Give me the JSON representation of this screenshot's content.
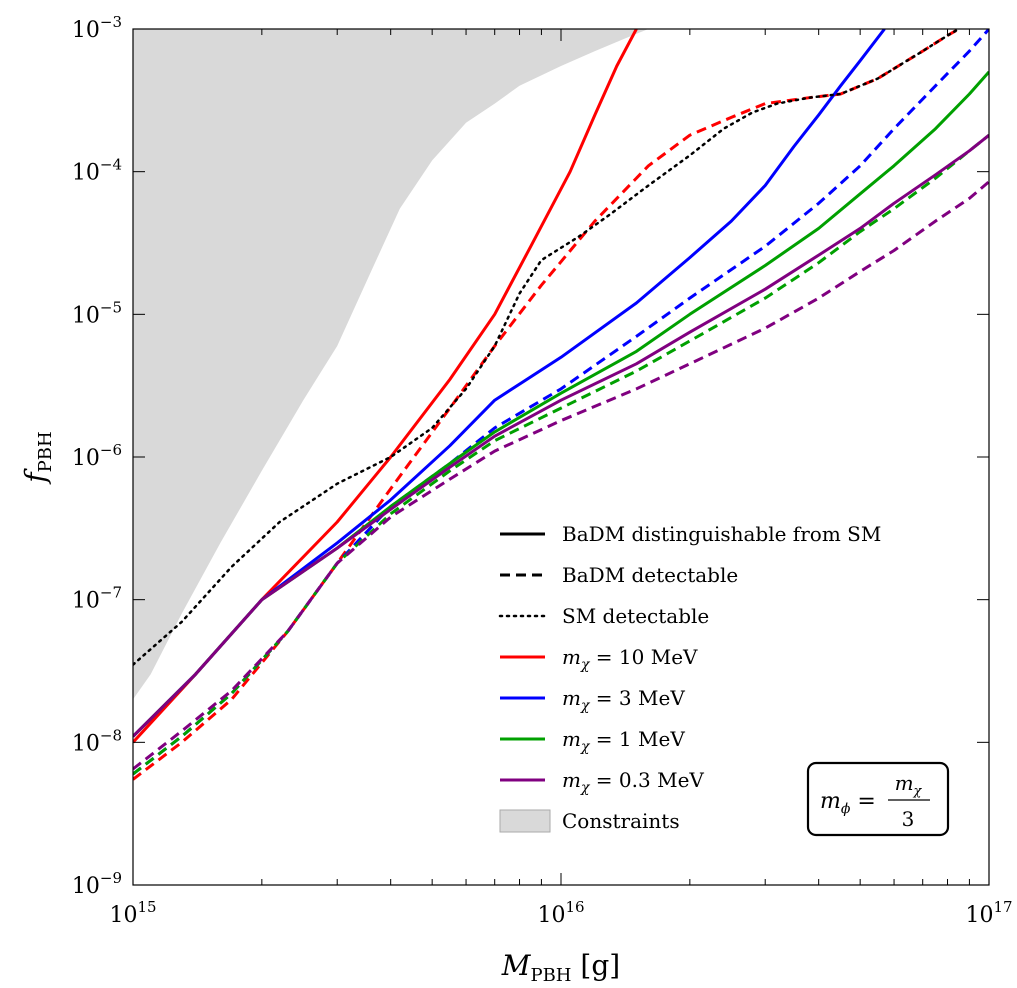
{
  "chart_data": {
    "type": "line",
    "x_scale": "log",
    "y_scale": "log",
    "xlim": [
      1000000000000000.0,
      1e+17
    ],
    "ylim": [
      1e-09,
      0.001
    ],
    "x_ticks": [
      {
        "value": 1000000000000000.0,
        "base": "10",
        "exp": "15"
      },
      {
        "value": 1e+16,
        "base": "10",
        "exp": "16"
      },
      {
        "value": 1e+17,
        "base": "10",
        "exp": "17"
      }
    ],
    "y_ticks": [
      {
        "value": 1e-09,
        "base": "10",
        "exp": "−9"
      },
      {
        "value": 1e-08,
        "base": "10",
        "exp": "−8"
      },
      {
        "value": 1e-07,
        "base": "10",
        "exp": "−7"
      },
      {
        "value": 1e-06,
        "base": "10",
        "exp": "−6"
      },
      {
        "value": 1e-05,
        "base": "10",
        "exp": "−5"
      },
      {
        "value": 0.0001,
        "base": "10",
        "exp": "−4"
      },
      {
        "value": 0.001,
        "base": "10",
        "exp": "−3"
      }
    ],
    "xlabel": {
      "main": "M",
      "sub": "PBH",
      "unit": " [g]"
    },
    "ylabel": {
      "main": "f",
      "sub": "PBH"
    },
    "grid": false,
    "legend_position": "bottom-center",
    "legend": [
      {
        "label": "BaDM distinguishable from SM",
        "style": "solid",
        "color": "#000000"
      },
      {
        "label": "BaDM detectable",
        "style": "dashed",
        "color": "#000000"
      },
      {
        "label": "SM detectable",
        "style": "dotted",
        "color": "#000000"
      },
      {
        "label_math": [
          "m",
          "χ",
          " = 10 MeV"
        ],
        "style": "solid",
        "color": "#ff0000"
      },
      {
        "label_math": [
          "m",
          "χ",
          " = 3 MeV"
        ],
        "style": "solid",
        "color": "#0000ff"
      },
      {
        "label_math": [
          "m",
          "χ",
          " = 1 MeV"
        ],
        "style": "solid",
        "color": "#00a000"
      },
      {
        "label_math": [
          "m",
          "χ",
          " = 0.3 MeV"
        ],
        "style": "solid",
        "color": "#800080"
      },
      {
        "label": "Constraints",
        "style": "fill",
        "color": "#d9d9d9"
      }
    ],
    "annotation": {
      "lhs": "m",
      "lhs_sub": "ϕ",
      "num": "m",
      "num_sub": "χ",
      "den": "3"
    },
    "constraints": {
      "color": "#d9d9d9",
      "boundary": [
        [
          1000000000000000.0,
          2e-08
        ],
        [
          1100000000000000.0,
          3e-08
        ],
        [
          1300000000000000.0,
          8e-08
        ],
        [
          1600000000000000.0,
          2.5e-07
        ],
        [
          2000000000000000.0,
          8e-07
        ],
        [
          2500000000000000.0,
          2.5e-06
        ],
        [
          3000000000000000.0,
          6e-06
        ],
        [
          3600000000000000.0,
          2e-05
        ],
        [
          4200000000000000.0,
          5.5e-05
        ],
        [
          5000000000000000.0,
          0.00012
        ],
        [
          6000000000000000.0,
          0.00022
        ],
        [
          7000000000000000.0,
          0.0003
        ],
        [
          8000000000000000.0,
          0.0004
        ],
        [
          1e+16,
          0.00055
        ],
        [
          1.2e+16,
          0.0007
        ],
        [
          1.4e+16,
          0.00085
        ],
        [
          1.6e+16,
          0.001
        ]
      ]
    },
    "series": [
      {
        "color": "#ff0000",
        "style": "solid",
        "points": [
          [
            1000000000000000.0,
            1e-08
          ],
          [
            1400000000000000.0,
            3e-08
          ],
          [
            2000000000000000.0,
            1e-07
          ],
          [
            3000000000000000.0,
            3.5e-07
          ],
          [
            4000000000000000.0,
            1e-06
          ],
          [
            5500000000000000.0,
            3.5e-06
          ],
          [
            7000000000000000.0,
            1e-05
          ],
          [
            8500000000000000.0,
            3e-05
          ],
          [
            1.05e+16,
            0.0001
          ],
          [
            1.2e+16,
            0.00025
          ],
          [
            1.35e+16,
            0.00055
          ],
          [
            1.5e+16,
            0.001
          ]
        ]
      },
      {
        "color": "#ff0000",
        "style": "dashed",
        "points": [
          [
            1000000000000000.0,
            5.5e-09
          ],
          [
            1300000000000000.0,
            1e-08
          ],
          [
            1700000000000000.0,
            2e-08
          ],
          [
            2300000000000000.0,
            6e-08
          ],
          [
            3000000000000000.0,
            1.8e-07
          ],
          [
            4000000000000000.0,
            6e-07
          ],
          [
            5500000000000000.0,
            2.2e-06
          ],
          [
            7000000000000000.0,
            6e-06
          ],
          [
            9000000000000000.0,
            1.6e-05
          ],
          [
            1.2e+16,
            4.5e-05
          ],
          [
            1.6e+16,
            0.00011
          ],
          [
            2e+16,
            0.00018
          ],
          [
            2.5e+16,
            0.00024
          ],
          [
            3e+16,
            0.0003
          ],
          [
            3.8e+16,
            0.00033
          ],
          [
            4.5e+16,
            0.00035
          ],
          [
            5.5e+16,
            0.00045
          ],
          [
            7e+16,
            0.0007
          ],
          [
            8e+16,
            0.0009
          ],
          [
            8.5e+16,
            0.001
          ]
        ]
      },
      {
        "color": "#0000ff",
        "style": "solid",
        "points": [
          [
            1000000000000000.0,
            1.1e-08
          ],
          [
            1400000000000000.0,
            3e-08
          ],
          [
            2000000000000000.0,
            1e-07
          ],
          [
            3000000000000000.0,
            2.5e-07
          ],
          [
            4000000000000000.0,
            5e-07
          ],
          [
            5500000000000000.0,
            1.2e-06
          ],
          [
            7000000000000000.0,
            2.5e-06
          ],
          [
            1e+16,
            5e-06
          ],
          [
            1.5e+16,
            1.2e-05
          ],
          [
            2e+16,
            2.5e-05
          ],
          [
            2.5e+16,
            4.5e-05
          ],
          [
            3e+16,
            8e-05
          ],
          [
            3.5e+16,
            0.00015
          ],
          [
            4e+16,
            0.00025
          ],
          [
            4.5e+16,
            0.0004
          ],
          [
            5e+16,
            0.0006
          ],
          [
            5.7e+16,
            0.001
          ]
        ]
      },
      {
        "color": "#0000ff",
        "style": "dashed",
        "points": [
          [
            1000000000000000.0,
            6e-09
          ],
          [
            1300000000000000.0,
            1.1e-08
          ],
          [
            1700000000000000.0,
            2.2e-08
          ],
          [
            2300000000000000.0,
            6e-08
          ],
          [
            3000000000000000.0,
            1.8e-07
          ],
          [
            4000000000000000.0,
            4.5e-07
          ],
          [
            5500000000000000.0,
            9e-07
          ],
          [
            7000000000000000.0,
            1.6e-06
          ],
          [
            1e+16,
            3e-06
          ],
          [
            1.5e+16,
            7e-06
          ],
          [
            2e+16,
            1.3e-05
          ],
          [
            3e+16,
            3e-05
          ],
          [
            4e+16,
            6e-05
          ],
          [
            5e+16,
            0.00011
          ],
          [
            6e+16,
            0.0002
          ],
          [
            7.5e+16,
            0.0004
          ],
          [
            9e+16,
            0.0007
          ],
          [
            1e+17,
            0.001
          ]
        ]
      },
      {
        "color": "#00a000",
        "style": "solid",
        "points": [
          [
            1000000000000000.0,
            1.1e-08
          ],
          [
            1400000000000000.0,
            3e-08
          ],
          [
            2000000000000000.0,
            1e-07
          ],
          [
            3000000000000000.0,
            2.3e-07
          ],
          [
            4000000000000000.0,
            4.5e-07
          ],
          [
            5500000000000000.0,
            9e-07
          ],
          [
            7000000000000000.0,
            1.5e-06
          ],
          [
            1e+16,
            2.8e-06
          ],
          [
            1.5e+16,
            5.5e-06
          ],
          [
            2e+16,
            1e-05
          ],
          [
            3e+16,
            2.2e-05
          ],
          [
            4e+16,
            4e-05
          ],
          [
            5e+16,
            7e-05
          ],
          [
            6e+16,
            0.00011
          ],
          [
            7.5e+16,
            0.0002
          ],
          [
            9e+16,
            0.00035
          ],
          [
            1e+17,
            0.0005
          ]
        ]
      },
      {
        "color": "#00a000",
        "style": "dashed",
        "points": [
          [
            1000000000000000.0,
            6e-09
          ],
          [
            1300000000000000.0,
            1.1e-08
          ],
          [
            1700000000000000.0,
            2.2e-08
          ],
          [
            2300000000000000.0,
            6e-08
          ],
          [
            3000000000000000.0,
            1.8e-07
          ],
          [
            4000000000000000.0,
            4e-07
          ],
          [
            5500000000000000.0,
            8e-07
          ],
          [
            7000000000000000.0,
            1.3e-06
          ],
          [
            1e+16,
            2.2e-06
          ],
          [
            1.5e+16,
            4e-06
          ],
          [
            2e+16,
            6.5e-06
          ],
          [
            3e+16,
            1.3e-05
          ],
          [
            4e+16,
            2.3e-05
          ],
          [
            5e+16,
            3.8e-05
          ],
          [
            6e+16,
            5.5e-05
          ],
          [
            7.5e+16,
            9e-05
          ],
          [
            9e+16,
            0.00014
          ],
          [
            1e+17,
            0.00018
          ]
        ]
      },
      {
        "color": "#800080",
        "style": "solid",
        "points": [
          [
            1000000000000000.0,
            1.1e-08
          ],
          [
            1400000000000000.0,
            3e-08
          ],
          [
            2000000000000000.0,
            1e-07
          ],
          [
            3000000000000000.0,
            2.3e-07
          ],
          [
            4000000000000000.0,
            4.3e-07
          ],
          [
            5500000000000000.0,
            8.5e-07
          ],
          [
            7000000000000000.0,
            1.4e-06
          ],
          [
            1e+16,
            2.5e-06
          ],
          [
            1.5e+16,
            4.5e-06
          ],
          [
            2e+16,
            7.5e-06
          ],
          [
            3e+16,
            1.5e-05
          ],
          [
            4e+16,
            2.6e-05
          ],
          [
            5e+16,
            4e-05
          ],
          [
            6e+16,
            6e-05
          ],
          [
            7.5e+16,
            9.5e-05
          ],
          [
            9e+16,
            0.00014
          ],
          [
            1e+17,
            0.00018
          ]
        ]
      },
      {
        "color": "#800080",
        "style": "dashed",
        "points": [
          [
            1000000000000000.0,
            6.5e-09
          ],
          [
            1300000000000000.0,
            1.2e-08
          ],
          [
            1700000000000000.0,
            2.3e-08
          ],
          [
            2300000000000000.0,
            6e-08
          ],
          [
            3000000000000000.0,
            1.8e-07
          ],
          [
            4000000000000000.0,
            3.8e-07
          ],
          [
            5500000000000000.0,
            7e-07
          ],
          [
            7000000000000000.0,
            1.1e-06
          ],
          [
            1e+16,
            1.8e-06
          ],
          [
            1.5e+16,
            3e-06
          ],
          [
            2e+16,
            4.5e-06
          ],
          [
            3e+16,
            8e-06
          ],
          [
            4e+16,
            1.3e-05
          ],
          [
            5e+16,
            2e-05
          ],
          [
            6e+16,
            2.8e-05
          ],
          [
            7.5e+16,
            4.5e-05
          ],
          [
            9e+16,
            6.5e-05
          ],
          [
            1e+17,
            8.5e-05
          ]
        ]
      },
      {
        "color": "#000000",
        "style": "dotted",
        "points": [
          [
            1000000000000000.0,
            3.5e-08
          ],
          [
            1300000000000000.0,
            7e-08
          ],
          [
            1700000000000000.0,
            1.7e-07
          ],
          [
            2200000000000000.0,
            3.5e-07
          ],
          [
            3000000000000000.0,
            6.5e-07
          ],
          [
            4000000000000000.0,
            1e-06
          ],
          [
            5000000000000000.0,
            1.6e-06
          ],
          [
            6000000000000000.0,
            3e-06
          ],
          [
            7000000000000000.0,
            6e-06
          ],
          [
            8000000000000000.0,
            1.4e-05
          ],
          [
            9000000000000000.0,
            2.4e-05
          ],
          [
            1.1e+16,
            3.5e-05
          ],
          [
            1.3e+16,
            5e-05
          ],
          [
            1.6e+16,
            8e-05
          ],
          [
            2e+16,
            0.00013
          ],
          [
            2.4e+16,
            0.0002
          ],
          [
            2.8e+16,
            0.00026
          ],
          [
            3.2e+16,
            0.0003
          ],
          [
            3.8e+16,
            0.00033
          ],
          [
            4.5e+16,
            0.00035
          ],
          [
            5.5e+16,
            0.00045
          ],
          [
            7e+16,
            0.0007
          ],
          [
            8e+16,
            0.0009
          ],
          [
            8.5e+16,
            0.001
          ]
        ]
      }
    ]
  }
}
